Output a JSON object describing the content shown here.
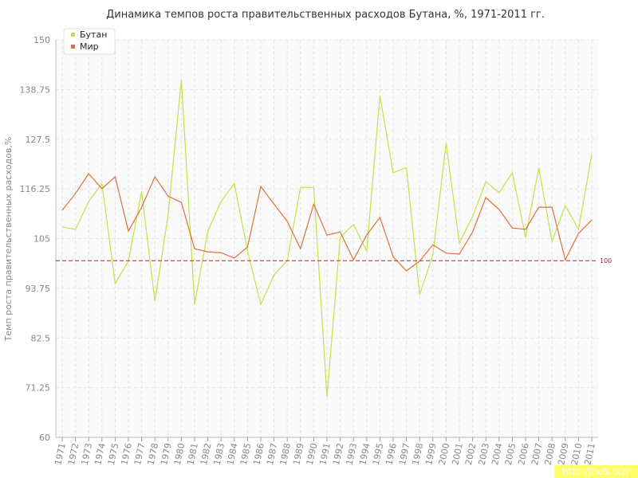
{
  "chart_data": {
    "type": "line",
    "title": "Динамика темпов роста правительственных расходов Бутана, %, 1971-2011 гг.",
    "y_label": "Темп роста правительственных расходов,%",
    "categories": [
      "1971",
      "1972",
      "1973",
      "1974",
      "1975",
      "1976",
      "1977",
      "1978",
      "1979",
      "1980",
      "1981",
      "1982",
      "1983",
      "1984",
      "1985",
      "1986",
      "1987",
      "1988",
      "1989",
      "1990",
      "1991",
      "1992",
      "1993",
      "1994",
      "1995",
      "1996",
      "1997",
      "1998",
      "1999",
      "2000",
      "2001",
      "2002",
      "2003",
      "2004",
      "2005",
      "2006",
      "2007",
      "2008",
      "2009",
      "2010",
      "2011"
    ],
    "series": [
      {
        "name": "Бутан",
        "color": "#c5e048",
        "values": [
          107.6,
          107.1,
          113.4,
          117.5,
          94.8,
          99.9,
          115.7,
          90.8,
          110.3,
          141.0,
          90.1,
          106.7,
          113.4,
          117.5,
          102.2,
          90.1,
          96.8,
          100.0,
          116.6,
          116.6,
          69.2,
          105.3,
          108.2,
          102.2,
          137.4,
          119.9,
          121.1,
          92.3,
          101.3,
          126.6,
          104.0,
          110.0,
          117.9,
          115.4,
          119.9,
          105.3,
          121.0,
          104.4,
          112.5,
          107.1,
          124.0
        ]
      },
      {
        "name": "Мир",
        "color": "#e0703c",
        "values": [
          111.4,
          115.2,
          119.7,
          116.3,
          119.0,
          106.7,
          112.1,
          119.0,
          114.6,
          113.2,
          102.7,
          102.0,
          101.8,
          100.6,
          103.1,
          116.8,
          112.8,
          108.9,
          102.7,
          112.8,
          105.8,
          106.5,
          100.2,
          105.8,
          109.8,
          100.9,
          97.7,
          99.9,
          103.6,
          101.7,
          101.5,
          106.5,
          114.3,
          111.6,
          107.4,
          107.1,
          112.1,
          112.1,
          100.2,
          106.2,
          109.2
        ]
      }
    ],
    "ylim": [
      60,
      150
    ],
    "yticks": [
      60,
      71.25,
      82.5,
      93.75,
      105,
      116.25,
      127.5,
      138.75,
      150
    ],
    "reference_line": 100,
    "reference_color": "#a03030",
    "grid": true,
    "legend": "top-left",
    "watermark": "http://be5.biz/"
  }
}
